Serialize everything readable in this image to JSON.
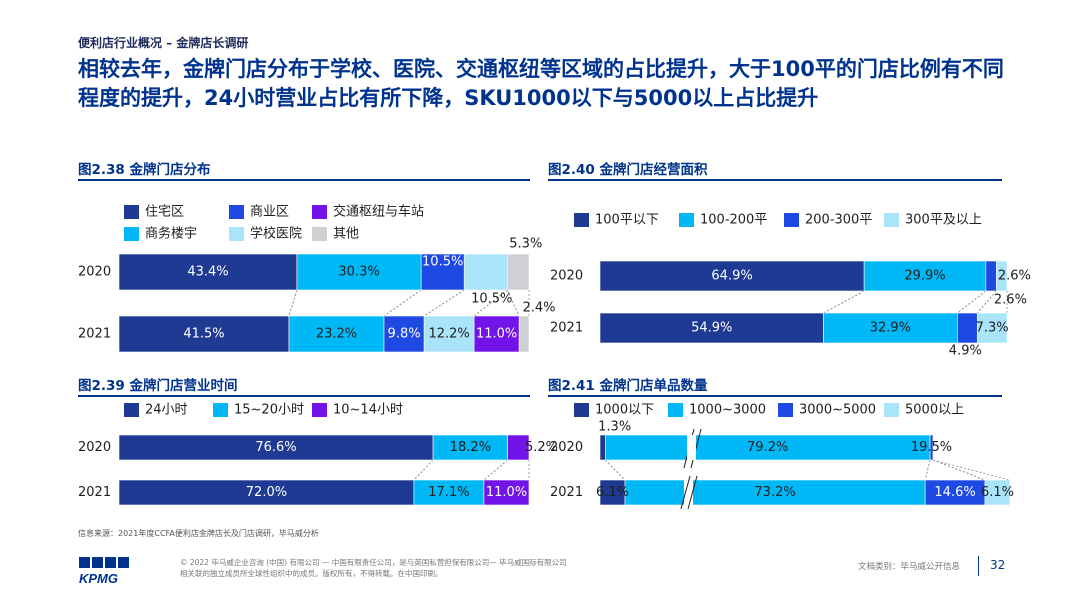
{
  "section_label": "便利店行业概况 – 金牌店长调研",
  "headline": "相较去年，金牌门店分布于学校、医院、交通枢纽等区域的占比提升，大于100平的门店比例有不同程度的提升，24小时营业占比有所下降，SKU1000以下与5000以上占比提升",
  "source": "信息来源：2021年度CCFA便利店金牌店长及门店调研，毕马威分析",
  "copyright": [
    "© 2022 毕马威企业咨询 (中国) 有限公司 — 中国有限责任公司，是与英国私营担保有限公司— 毕马威国际有限公司",
    "相关联的独立成员所全球性组织中的成员。版权所有，不得转载。在中国印刷。"
  ],
  "doc_class": "文档类别：毕马威公开信息",
  "page_number": "32",
  "logo_text": "KPMG",
  "colors": {
    "navy": "#1f3a93",
    "blue": "#1e49e2",
    "cyan": "#00b8f5",
    "light": "#a9e4fb",
    "purple": "#7213ea",
    "grey": "#cfd0d4",
    "brand": "#00338d"
  },
  "chart_data": [
    {
      "id": "fig238",
      "type": "bar",
      "orientation": "horizontal-stacked",
      "title": "图2.38 金牌门店分布",
      "categories": [
        "2020",
        "2021"
      ],
      "series": [
        {
          "name": "住宅区",
          "values": [
            43.4,
            41.5
          ],
          "color": "#1f3a93"
        },
        {
          "name": "商务楼宇",
          "values": [
            30.3,
            23.2
          ],
          "color": "#00b8f5"
        },
        {
          "name": "商业区",
          "values": [
            10.5,
            9.8
          ],
          "color": "#1e49e2"
        },
        {
          "name": "学校医院",
          "values": [
            10.5,
            12.2
          ],
          "color": "#a9e4fb"
        },
        {
          "name": "交通枢纽与车站",
          "values": [
            0,
            11.0
          ],
          "color": "#7213ea"
        },
        {
          "name": "其他",
          "values": [
            5.3,
            2.4
          ],
          "color": "#cfd0d4"
        }
      ],
      "labels": [
        [
          "43.4%",
          "30.3%",
          "10.5%",
          "10.5%",
          "",
          "5.3%"
        ],
        [
          "41.5%",
          "23.2%",
          "9.8%",
          "12.2%",
          "11.0%",
          "2.4%"
        ]
      ],
      "legend_order": [
        "住宅区",
        "商业区",
        "交通枢纽与车站",
        "商务楼宇",
        "学校医院",
        "其他"
      ],
      "legend": "top-left"
    },
    {
      "id": "fig239",
      "type": "bar",
      "orientation": "horizontal-stacked",
      "title": "图2.39 金牌门店营业时间",
      "categories": [
        "2020",
        "2021"
      ],
      "series": [
        {
          "name": "24小时",
          "values": [
            76.6,
            72.0
          ],
          "color": "#1f3a93"
        },
        {
          "name": "15~20小时",
          "values": [
            18.2,
            17.1
          ],
          "color": "#00b8f5"
        },
        {
          "name": "10~14小时",
          "values": [
            5.2,
            11.0
          ],
          "color": "#7213ea"
        }
      ],
      "labels": [
        [
          "76.6%",
          "18.2%",
          "5.2%"
        ],
        [
          "72.0%",
          "17.1%",
          "11.0%"
        ]
      ],
      "legend_order": [
        "24小时",
        "15~20小时",
        "10~14小时"
      ],
      "legend": "top-left"
    },
    {
      "id": "fig240",
      "type": "bar",
      "orientation": "horizontal-stacked",
      "title": "图2.40 金牌门店经营面积",
      "categories": [
        "2020",
        "2021"
      ],
      "series": [
        {
          "name": "100平以下",
          "values": [
            64.9,
            54.9
          ],
          "color": "#1f3a93"
        },
        {
          "name": "100-200平",
          "values": [
            29.9,
            32.9
          ],
          "color": "#00b8f5"
        },
        {
          "name": "200-300平",
          "values": [
            2.6,
            4.9
          ],
          "color": "#1e49e2"
        },
        {
          "name": "300平及以上",
          "values": [
            2.6,
            7.3
          ],
          "color": "#a9e4fb"
        }
      ],
      "labels": [
        [
          "64.9%",
          "29.9%",
          "2.6%",
          "2.6%"
        ],
        [
          "54.9%",
          "32.9%",
          "4.9%",
          "7.3%"
        ]
      ],
      "legend_order": [
        "100平以下",
        "100-200平",
        "200-300平",
        "300平及以上"
      ],
      "legend": "top-left"
    },
    {
      "id": "fig241",
      "type": "bar",
      "orientation": "horizontal-stacked",
      "title": "图2.41 金牌门店单品数量",
      "categories": [
        "2020",
        "2021"
      ],
      "series": [
        {
          "name": "1000以下",
          "values": [
            1.3,
            6.1
          ],
          "color": "#1f3a93"
        },
        {
          "name": "1000~3000",
          "values": [
            79.2,
            73.2
          ],
          "color": "#00b8f5"
        },
        {
          "name": "3000~5000",
          "values": [
            19.5,
            14.6
          ],
          "color": "#1e49e2"
        },
        {
          "name": "5000以上",
          "values": [
            0,
            6.1
          ],
          "color": "#a9e4fb"
        }
      ],
      "labels": [
        [
          "1.3%",
          "79.2%",
          "19.5%",
          ""
        ],
        [
          "6.1%",
          "73.2%",
          "14.6%",
          "6.1%"
        ]
      ],
      "axis_break": true,
      "legend_order": [
        "1000以下",
        "1000~3000",
        "3000~5000",
        "5000以上"
      ],
      "legend": "top-left"
    }
  ]
}
